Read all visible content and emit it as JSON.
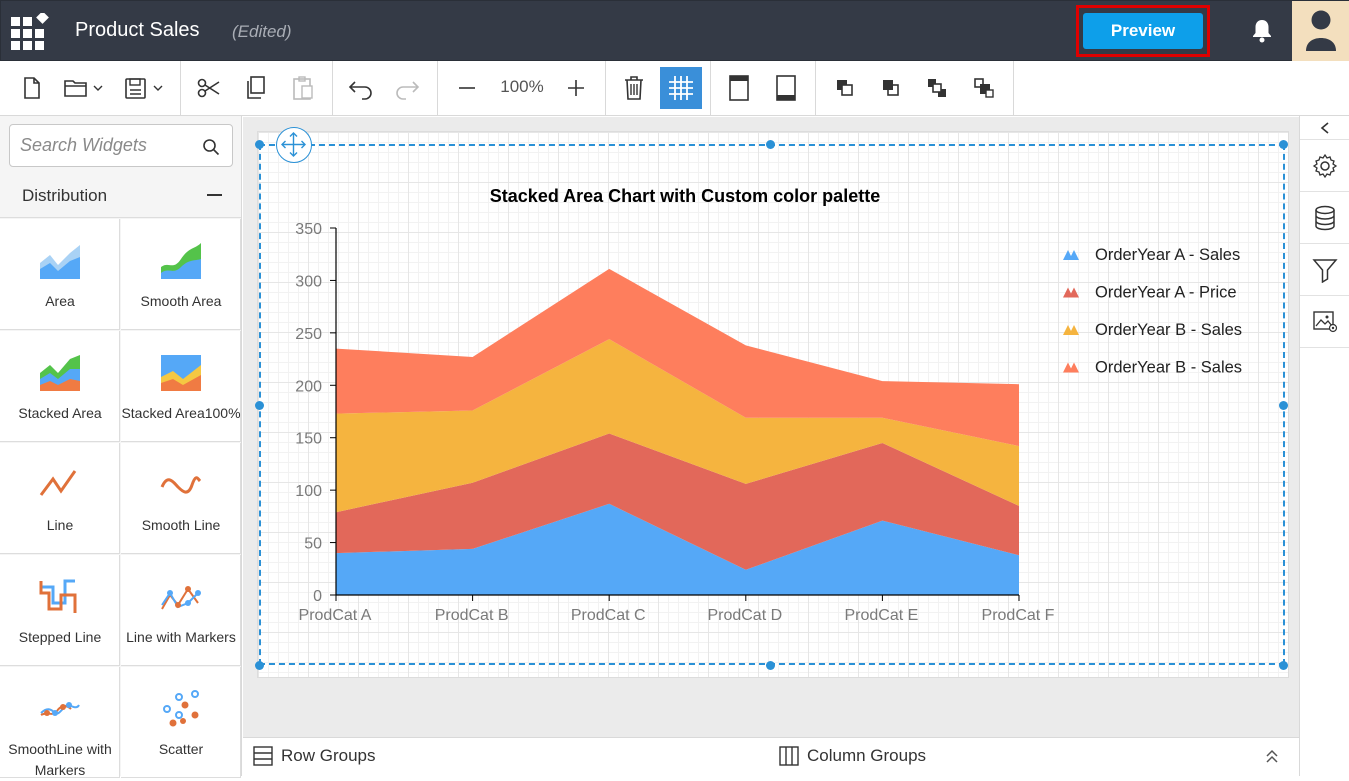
{
  "header": {
    "title": "Product Sales",
    "status": "(Edited)",
    "preview_label": "Preview"
  },
  "toolbar": {
    "zoom": "100%"
  },
  "sidebar": {
    "search_placeholder": "Search Widgets",
    "category": "Distribution",
    "widgets": [
      {
        "label": "Area",
        "icon": "area-chart-icon"
      },
      {
        "label": "Smooth Area",
        "icon": "smooth-area-chart-icon"
      },
      {
        "label": "Stacked Area",
        "icon": "stacked-area-chart-icon"
      },
      {
        "label": "Stacked Area100%",
        "icon": "stacked-area-100-chart-icon"
      },
      {
        "label": "Line",
        "icon": "line-chart-icon"
      },
      {
        "label": "Smooth Line",
        "icon": "smooth-line-chart-icon"
      },
      {
        "label": "Stepped Line",
        "icon": "stepped-line-chart-icon"
      },
      {
        "label": "Line with Markers",
        "icon": "line-markers-chart-icon"
      },
      {
        "label": "SmoothLine with Markers",
        "icon": "smooth-line-markers-chart-icon"
      },
      {
        "label": "Scatter",
        "icon": "scatter-chart-icon"
      }
    ]
  },
  "bottom": {
    "row_groups": "Row Groups",
    "column_groups": "Column Groups"
  },
  "colors": {
    "accent": "#0d9fea",
    "header_bg": "#343a46",
    "series": [
      "#55a8f7",
      "#e2685a",
      "#f5b43f",
      "#fe7e5d"
    ]
  },
  "chart_data": {
    "type": "area",
    "stacked": true,
    "title": "Stacked Area Chart with Custom color palette",
    "categories": [
      "ProdCat A",
      "ProdCat B",
      "ProdCat C",
      "ProdCat D",
      "ProdCat E",
      "ProdCat F"
    ],
    "ylim": [
      0,
      350
    ],
    "yticks": [
      0,
      50,
      100,
      150,
      200,
      250,
      300,
      350
    ],
    "legend_position": "right",
    "series": [
      {
        "name": "OrderYear A - Sales",
        "color": "#55a8f7",
        "values": [
          40,
          44,
          87,
          24,
          71,
          38
        ]
      },
      {
        "name": "OrderYear A - Price",
        "color": "#e2685a",
        "values": [
          39,
          63,
          67,
          82,
          74,
          47
        ]
      },
      {
        "name": "OrderYear B - Sales",
        "color": "#f5b43f",
        "values": [
          94,
          69,
          90,
          63,
          24,
          57
        ]
      },
      {
        "name": "OrderYear B - Sales",
        "color": "#fe7e5d",
        "values": [
          62,
          51,
          67,
          69,
          35,
          59
        ]
      }
    ]
  }
}
